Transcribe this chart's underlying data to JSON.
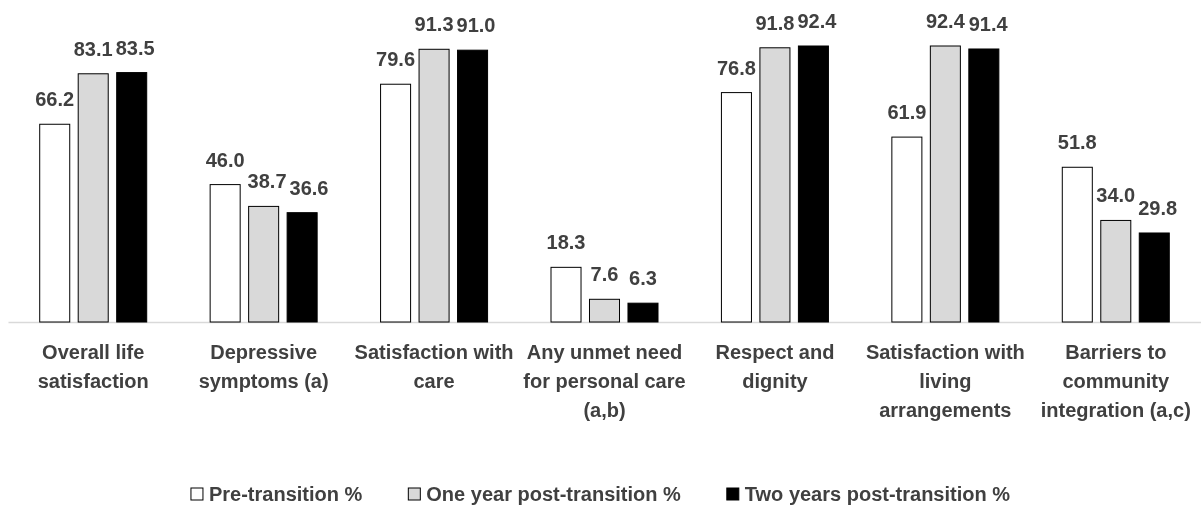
{
  "chart_data": {
    "type": "bar",
    "categories": [
      "Overall life satisfaction",
      "Depressive symptoms (a)",
      "Satisfaction with care",
      "Any unmet need for personal care (a,b)",
      "Respect and dignity",
      "Satisfaction with living arrangements",
      "Barriers to community integration (a,c)"
    ],
    "series": [
      {
        "name": "Pre-transition %",
        "color": "#ffffff",
        "values": [
          66.2,
          46.0,
          79.6,
          18.3,
          76.8,
          61.9,
          51.8
        ],
        "value_labels": [
          "66.2",
          "46.0",
          "79.6",
          "18.3",
          "76.8",
          "61.9",
          "51.8"
        ]
      },
      {
        "name": "One year post-transition %",
        "color": "#d9d9d9",
        "values": [
          83.1,
          38.7,
          91.3,
          7.6,
          91.8,
          92.4,
          34.0
        ],
        "value_labels": [
          "83.1",
          "38.7",
          "91.3",
          "7.6",
          "91.8",
          "92.4",
          "34.0"
        ]
      },
      {
        "name": "Two years post-transition %",
        "color": "#000000",
        "values": [
          83.5,
          36.6,
          91.0,
          6.3,
          92.4,
          91.4,
          29.8
        ],
        "value_labels": [
          "83.5",
          "36.6",
          "91.0",
          "6.3",
          "92.4",
          "91.4",
          "29.8"
        ]
      }
    ],
    "tick_labels": "x",
    "legend": "bottom"
  }
}
